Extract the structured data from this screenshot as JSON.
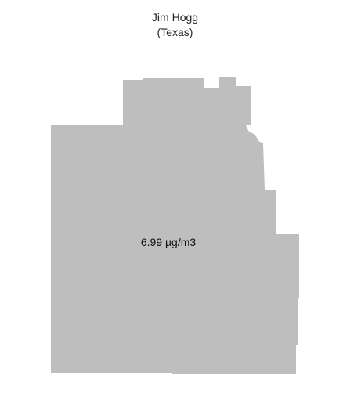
{
  "map": {
    "county": "Jim Hogg",
    "state_line": "(Texas)",
    "value_label": "6.99 µg/m3",
    "fill_color": "#bebebe",
    "background_color": "#ffffff"
  }
}
